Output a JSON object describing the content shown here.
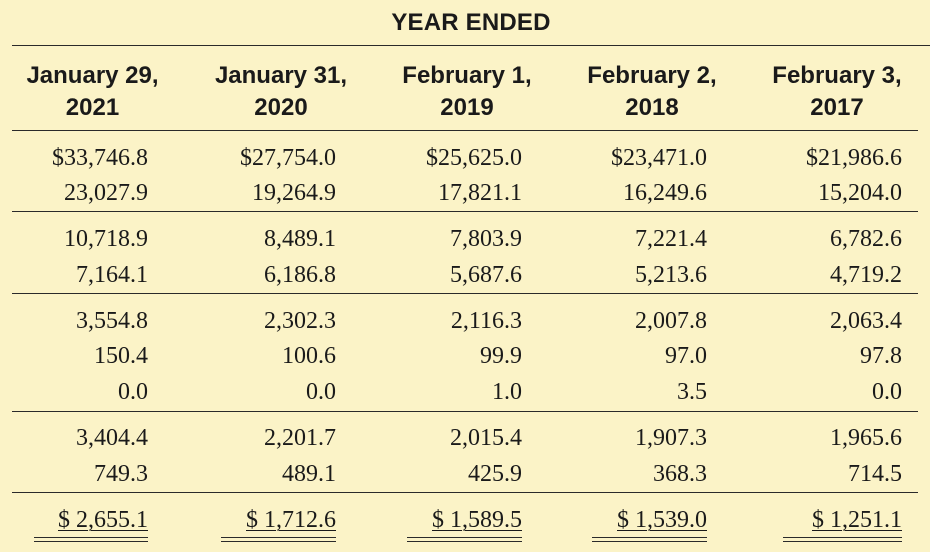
{
  "title": "YEAR ENDED",
  "columns": [
    {
      "line1": "January 29,",
      "line2": "2021"
    },
    {
      "line1": "January 31,",
      "line2": "2020"
    },
    {
      "line1": "February 1,",
      "line2": "2019"
    },
    {
      "line1": "February 2,",
      "line2": "2018"
    },
    {
      "line1": "February 3,",
      "line2": "2017"
    }
  ],
  "rows": [
    [
      "$33,746.8",
      "$27,754.0",
      "$25,625.0",
      "$23,471.0",
      "$21,986.6"
    ],
    [
      "23,027.9",
      "19,264.9",
      "17,821.1",
      "16,249.6",
      "15,204.0"
    ],
    [
      "10,718.9",
      "8,489.1",
      "7,803.9",
      "7,221.4",
      "6,782.6"
    ],
    [
      "7,164.1",
      "6,186.8",
      "5,687.6",
      "5,213.6",
      "4,719.2"
    ],
    [
      "3,554.8",
      "2,302.3",
      "2,116.3",
      "2,007.8",
      "2,063.4"
    ],
    [
      "150.4",
      "100.6",
      "99.9",
      "97.0",
      "97.8"
    ],
    [
      "0.0",
      "0.0",
      "1.0",
      "3.5",
      "0.0"
    ],
    [
      "3,404.4",
      "2,201.7",
      "2,015.4",
      "1,907.3",
      "1,965.6"
    ],
    [
      "749.3",
      "489.1",
      "425.9",
      "368.3",
      "714.5"
    ],
    [
      "$ 2,655.1",
      "$ 1,712.6",
      "$ 1,589.5",
      "$ 1,539.0",
      "$ 1,251.1"
    ]
  ]
}
